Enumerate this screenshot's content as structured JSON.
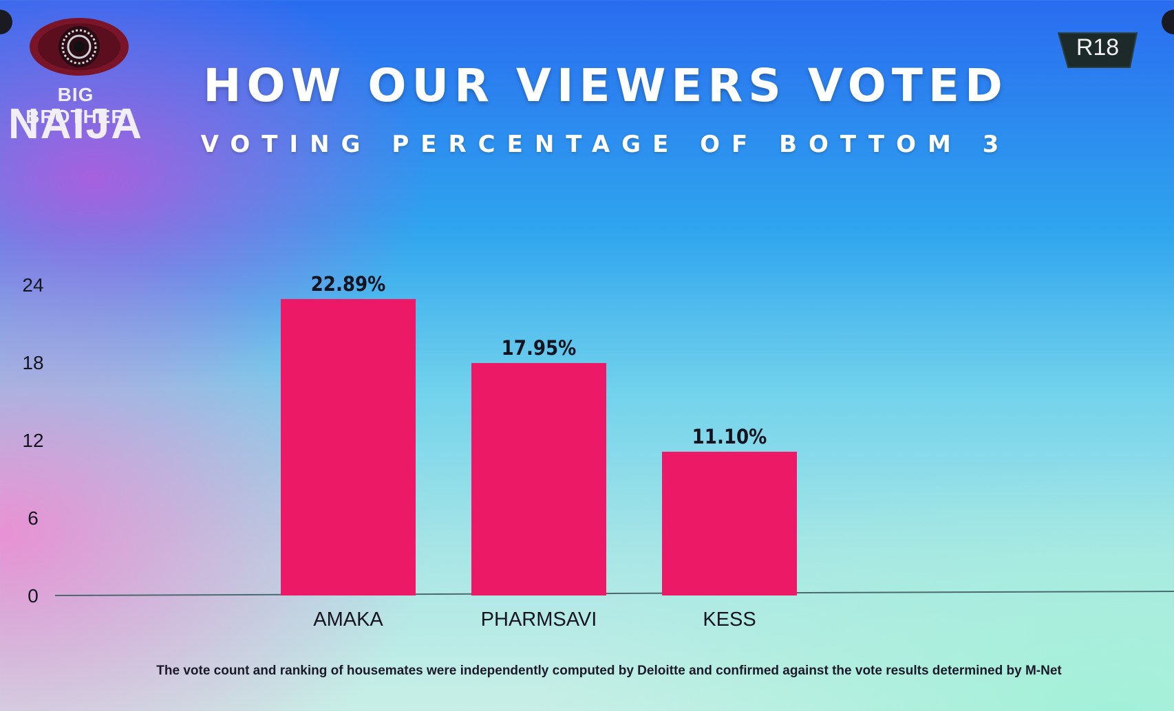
{
  "logo": {
    "line1": "BIG BROTHER",
    "line2": "NAIJA",
    "icon": "eye-icon"
  },
  "rating": "R18",
  "chart_data": {
    "type": "bar",
    "title": "HOW OUR VIEWERS VOTED",
    "subtitle": "VOTING PERCENTAGE OF BOTTOM 3",
    "categories": [
      "AMAKA",
      "PHARMSAVI",
      "KESS"
    ],
    "values": [
      22.89,
      17.95,
      11.1
    ],
    "data_labels": [
      "22.89%",
      "17.95%",
      "11.10%"
    ],
    "yticks": [
      "0",
      "6",
      "12",
      "18",
      "24"
    ],
    "ylim": [
      0,
      24
    ],
    "xlabel": "",
    "ylabel": "",
    "grid": false,
    "legend": "none",
    "bar_color": "#ec1a66"
  },
  "footnote": "The vote count and ranking of housemates were independently computed by Deloitte and confirmed against the vote results determined by M-Net"
}
